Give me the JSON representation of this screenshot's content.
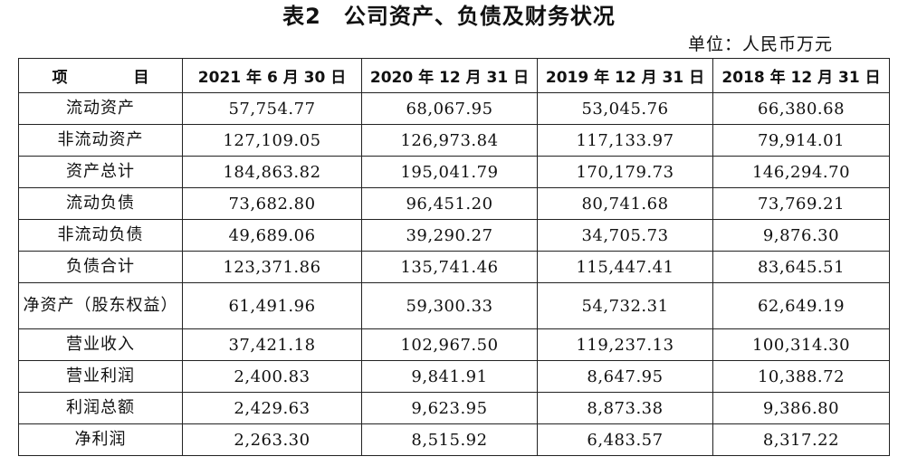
{
  "title": "表2　公司资产、负债及财务状况",
  "unit": "单位：人民币万元",
  "table": {
    "headers": [
      "项　目",
      "2021 年 6 月 30 日",
      "2020 年 12 月 31 日",
      "2019 年 12 月 31 日",
      "2018 年 12 月 31 日"
    ],
    "rows": [
      {
        "label": "流动资产",
        "values": [
          "57,754.77",
          "68,067.95",
          "53,045.76",
          "66,380.68"
        ]
      },
      {
        "label": "非流动资产",
        "values": [
          "127,109.05",
          "126,973.84",
          "117,133.97",
          "79,914.01"
        ]
      },
      {
        "label": "资产总计",
        "values": [
          "184,863.82",
          "195,041.79",
          "170,179.73",
          "146,294.70"
        ]
      },
      {
        "label": "流动负债",
        "values": [
          "73,682.80",
          "96,451.20",
          "80,741.68",
          "73,769.21"
        ]
      },
      {
        "label": "非流动负债",
        "values": [
          "49,689.06",
          "39,290.27",
          "34,705.73",
          "9,876.30"
        ]
      },
      {
        "label": "负债合计",
        "values": [
          "123,371.86",
          "135,741.46",
          "115,447.41",
          "83,645.51"
        ]
      },
      {
        "label": "净资产（股东权益）",
        "values": [
          "61,491.96",
          "59,300.33",
          "54,732.31",
          "62,649.19"
        ]
      },
      {
        "label": "营业收入",
        "values": [
          "37,421.18",
          "102,967.50",
          "119,237.13",
          "100,314.30"
        ]
      },
      {
        "label": "营业利润",
        "values": [
          "2,400.83",
          "9,841.91",
          "8,647.95",
          "10,388.72"
        ]
      },
      {
        "label": "利润总额",
        "values": [
          "2,429.63",
          "9,623.95",
          "8,873.38",
          "9,386.80"
        ]
      },
      {
        "label": "净利润",
        "values": [
          "2,263.30",
          "8,515.92",
          "6,483.57",
          "8,317.22"
        ]
      }
    ]
  }
}
